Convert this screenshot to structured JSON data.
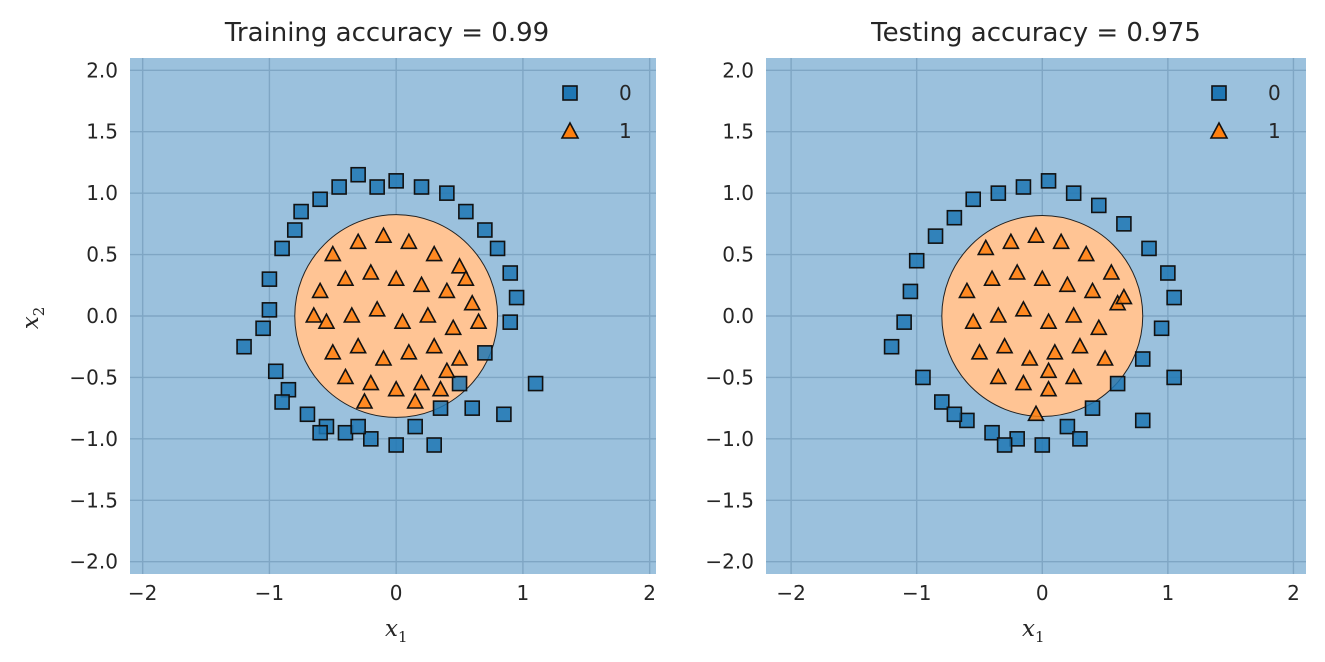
{
  "colors": {
    "class0_region": "#9bc1dd",
    "class1_region": "#ffc494",
    "class0_marker": "#1f77b4",
    "class1_marker": "#ff7f0e",
    "grid": "#7fa6c4",
    "edge": "#111111"
  },
  "chart_data": [
    {
      "type": "scatter",
      "title": "Training accuracy = 0.99",
      "xlabel": "x",
      "xlabel_sub": "1",
      "ylabel": "x",
      "ylabel_sub": "2",
      "xlim": [
        -2.1,
        2.05
      ],
      "ylim": [
        -2.1,
        2.1
      ],
      "xticks": [
        -2,
        -1,
        0,
        1,
        2
      ],
      "xtick_labels": [
        "−2",
        "−1",
        "0",
        "1",
        "2"
      ],
      "yticks": [
        2.0,
        1.5,
        1.0,
        0.5,
        0.0,
        -0.5,
        -1.0,
        -1.5,
        -2.0
      ],
      "ytick_labels": [
        "2.0",
        "1.5",
        "1.0",
        "0.5",
        "0.0",
        "−0.5",
        "−1.0",
        "−1.5",
        "−2.0"
      ],
      "grid": true,
      "legend_position": "top-right",
      "decision_region": {
        "class1_circle_radius": 0.8
      },
      "series": [
        {
          "name": "0",
          "marker": "square",
          "x": [
            -1.0,
            -0.9,
            -0.8,
            -0.75,
            -0.6,
            -0.45,
            -0.3,
            -0.15,
            0.0,
            0.2,
            0.4,
            0.55,
            0.7,
            0.8,
            0.9,
            0.95,
            0.9,
            0.7,
            0.5,
            0.35,
            0.15,
            0.0,
            -0.2,
            -0.4,
            -0.55,
            -0.7,
            -0.85,
            -0.95,
            -1.05,
            -1.0,
            -0.6,
            -0.3,
            0.3,
            0.6,
            1.1,
            0.85,
            -1.2,
            -0.9
          ],
          "y": [
            0.3,
            0.55,
            0.7,
            0.85,
            0.95,
            1.05,
            1.15,
            1.05,
            1.1,
            1.05,
            1.0,
            0.85,
            0.7,
            0.55,
            0.35,
            0.15,
            -0.05,
            -0.3,
            -0.55,
            -0.75,
            -0.9,
            -1.05,
            -1.0,
            -0.95,
            -0.9,
            -0.8,
            -0.6,
            -0.45,
            -0.1,
            0.05,
            -0.95,
            -0.9,
            -1.05,
            -0.75,
            -0.55,
            -0.8,
            -0.25,
            -0.7
          ]
        },
        {
          "name": "1",
          "marker": "triangle",
          "x": [
            -0.5,
            -0.3,
            -0.1,
            0.1,
            0.3,
            0.5,
            -0.6,
            -0.4,
            -0.2,
            0.0,
            0.2,
            0.4,
            0.6,
            -0.55,
            -0.35,
            -0.15,
            0.05,
            0.25,
            0.45,
            0.65,
            -0.5,
            -0.3,
            -0.1,
            0.1,
            0.3,
            0.5,
            -0.4,
            -0.2,
            0.0,
            0.2,
            0.4,
            -0.25,
            0.15,
            0.35,
            -0.65,
            0.55
          ],
          "y": [
            0.5,
            0.6,
            0.65,
            0.6,
            0.5,
            0.4,
            0.2,
            0.3,
            0.35,
            0.3,
            0.25,
            0.2,
            0.1,
            -0.05,
            0.0,
            0.05,
            -0.05,
            0.0,
            -0.1,
            -0.05,
            -0.3,
            -0.25,
            -0.35,
            -0.3,
            -0.25,
            -0.35,
            -0.5,
            -0.55,
            -0.6,
            -0.55,
            -0.45,
            -0.7,
            -0.7,
            -0.6,
            0.0,
            0.3
          ]
        }
      ]
    },
    {
      "type": "scatter",
      "title": "Testing accuracy = 0.975",
      "xlabel": "x",
      "xlabel_sub": "1",
      "ylabel": "",
      "ylabel_sub": "",
      "xlim": [
        -2.2,
        2.1
      ],
      "ylim": [
        -2.1,
        2.1
      ],
      "xticks": [
        -2,
        -1,
        0,
        1,
        2
      ],
      "xtick_labels": [
        "−2",
        "−1",
        "0",
        "1",
        "2"
      ],
      "yticks": [
        2.0,
        1.5,
        1.0,
        0.5,
        0.0,
        -0.5,
        -1.0,
        -1.5,
        -2.0
      ],
      "ytick_labels": [
        "2.0",
        "1.5",
        "1.0",
        "0.5",
        "0.0",
        "−0.5",
        "−1.0",
        "−1.5",
        "−2.0"
      ],
      "grid": true,
      "legend_position": "top-right",
      "decision_region": {
        "class1_circle_radius": 0.8
      },
      "series": [
        {
          "name": "0",
          "marker": "square",
          "x": [
            -1.0,
            -0.85,
            -0.7,
            -0.55,
            -0.35,
            -0.15,
            0.05,
            0.25,
            0.45,
            0.65,
            0.85,
            1.0,
            1.05,
            0.95,
            0.8,
            0.6,
            0.4,
            0.2,
            0.0,
            -0.2,
            -0.4,
            -0.6,
            -0.8,
            -0.95,
            -1.1,
            -1.05,
            -1.2,
            0.3,
            -0.3,
            0.8,
            1.05,
            -0.7
          ],
          "y": [
            0.45,
            0.65,
            0.8,
            0.95,
            1.0,
            1.05,
            1.1,
            1.0,
            0.9,
            0.75,
            0.55,
            0.35,
            0.15,
            -0.1,
            -0.35,
            -0.55,
            -0.75,
            -0.9,
            -1.05,
            -1.0,
            -0.95,
            -0.85,
            -0.7,
            -0.5,
            -0.05,
            0.2,
            -0.25,
            -1.0,
            -1.05,
            -0.85,
            -0.5,
            -0.8
          ]
        },
        {
          "name": "1",
          "marker": "triangle",
          "x": [
            -0.45,
            -0.25,
            -0.05,
            0.15,
            0.35,
            0.55,
            -0.6,
            -0.4,
            -0.2,
            0.0,
            0.2,
            0.4,
            0.6,
            -0.55,
            -0.35,
            -0.15,
            0.05,
            0.25,
            0.45,
            -0.5,
            -0.3,
            -0.1,
            0.1,
            0.3,
            0.5,
            -0.35,
            -0.15,
            0.05,
            0.25,
            -0.05,
            0.65,
            0.05
          ],
          "y": [
            0.55,
            0.6,
            0.65,
            0.6,
            0.5,
            0.35,
            0.2,
            0.3,
            0.35,
            0.3,
            0.25,
            0.2,
            0.1,
            -0.05,
            0.0,
            0.05,
            -0.05,
            0.0,
            -0.1,
            -0.3,
            -0.25,
            -0.35,
            -0.3,
            -0.25,
            -0.35,
            -0.5,
            -0.55,
            -0.6,
            -0.5,
            -0.8,
            0.15,
            -0.45
          ]
        }
      ]
    }
  ]
}
